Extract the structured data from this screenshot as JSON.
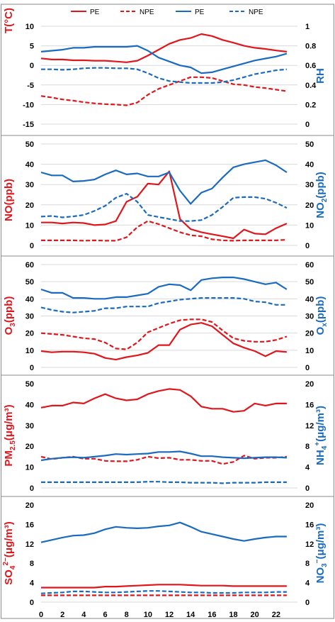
{
  "colors": {
    "pe": "#e0161c",
    "npe": "#e0161c",
    "blue": "#1a6bbf",
    "blue_npe": "#1a6bbf"
  },
  "legend": [
    {
      "label": "PE",
      "color": "#e0161c",
      "dashed": false
    },
    {
      "label": "NPE",
      "color": "#e0161c",
      "dashed": true
    },
    {
      "label": "PE",
      "color": "#1a6bbf",
      "dashed": false
    },
    {
      "label": "NPE",
      "color": "#1a6bbf",
      "dashed": true
    }
  ],
  "chart_data": [
    {
      "type": "line",
      "x": [
        0,
        1,
        2,
        3,
        4,
        5,
        6,
        7,
        8,
        9,
        10,
        11,
        12,
        13,
        14,
        15,
        16,
        17,
        18,
        19,
        20,
        21,
        22,
        23
      ],
      "xticks": [
        0,
        2,
        4,
        6,
        8,
        10,
        12,
        14,
        16,
        18,
        20,
        22
      ],
      "ylabel_left": "T(°C)",
      "ylabel_right": "RH",
      "ylim_left": [
        -15,
        10
      ],
      "yticks_left": [
        -15,
        -10,
        -5,
        0,
        5,
        10
      ],
      "ylim_right": [
        0,
        1
      ],
      "yticks_right": [
        "0",
        "0.2",
        "0.4",
        "0.6",
        "0.8",
        "1"
      ],
      "grid": true,
      "series": [
        {
          "name": "PE",
          "axis": "left",
          "color": "#e0161c",
          "dashed": false,
          "values": [
            1.8,
            1.5,
            1.5,
            1.3,
            1.3,
            1.2,
            1.2,
            1.0,
            0.8,
            1.2,
            2.5,
            4.0,
            5.5,
            6.5,
            7.0,
            8.0,
            7.5,
            6.5,
            5.8,
            5.0,
            4.5,
            4.2,
            3.8,
            3.5
          ]
        },
        {
          "name": "NPE",
          "axis": "left",
          "color": "#e0161c",
          "dashed": true,
          "values": [
            -7.8,
            -8.2,
            -8.7,
            -9.0,
            -9.4,
            -9.7,
            -9.9,
            -10.0,
            -10.2,
            -9.5,
            -7.5,
            -6.0,
            -5.0,
            -4.0,
            -3.0,
            -3.0,
            -3.2,
            -4.0,
            -4.8,
            -5.0,
            -5.5,
            -5.8,
            -6.2,
            -6.6
          ]
        },
        {
          "name": "PE",
          "axis": "right",
          "color": "#1a6bbf",
          "dashed": false,
          "values": [
            0.74,
            0.75,
            0.76,
            0.78,
            0.78,
            0.79,
            0.79,
            0.79,
            0.79,
            0.8,
            0.75,
            0.68,
            0.64,
            0.6,
            0.58,
            0.52,
            0.53,
            0.56,
            0.59,
            0.62,
            0.65,
            0.67,
            0.69,
            0.72
          ]
        },
        {
          "name": "NPE",
          "axis": "right",
          "color": "#1a6bbf",
          "dashed": true,
          "values": [
            0.56,
            0.56,
            0.555,
            0.56,
            0.57,
            0.575,
            0.575,
            0.57,
            0.57,
            0.56,
            0.52,
            0.47,
            0.44,
            0.43,
            0.42,
            0.42,
            0.42,
            0.43,
            0.45,
            0.48,
            0.51,
            0.53,
            0.55,
            0.56
          ]
        }
      ]
    },
    {
      "type": "line",
      "x": [
        0,
        1,
        2,
        3,
        4,
        5,
        6,
        7,
        8,
        9,
        10,
        11,
        12,
        13,
        14,
        15,
        16,
        17,
        18,
        19,
        20,
        21,
        22,
        23
      ],
      "xticks": [
        0,
        2,
        4,
        6,
        8,
        10,
        12,
        14,
        16,
        18,
        20,
        22
      ],
      "ylabel_left": "NO(ppb)",
      "ylabel_right": "NO2(ppb)",
      "ylim_left": [
        0,
        50
      ],
      "yticks_left": [
        0,
        10,
        20,
        30,
        40,
        50
      ],
      "ylim_right": [
        0,
        50
      ],
      "yticks_right": [
        0,
        10,
        20,
        30,
        40,
        50
      ],
      "grid": true,
      "series": [
        {
          "name": "PE",
          "axis": "left",
          "color": "#e0161c",
          "dashed": false,
          "values": [
            11.3,
            11.3,
            10.8,
            11.3,
            11.0,
            10.0,
            10.3,
            12.0,
            21.5,
            24.0,
            30.5,
            30.0,
            36.5,
            13.0,
            8.0,
            6.5,
            5.5,
            4.5,
            3.5,
            7.8,
            5.8,
            5.5,
            8.5,
            10.8
          ]
        },
        {
          "name": "NPE",
          "axis": "left",
          "color": "#e0161c",
          "dashed": true,
          "values": [
            2.5,
            2.5,
            2.5,
            2.5,
            2.3,
            2.5,
            2.3,
            2.3,
            4.0,
            9.0,
            12.0,
            10.5,
            8.5,
            6.5,
            5.0,
            4.5,
            3.0,
            2.5,
            2.3,
            2.5,
            2.5,
            2.5,
            2.5,
            2.8
          ]
        },
        {
          "name": "PE",
          "axis": "right",
          "color": "#1a6bbf",
          "dashed": false,
          "values": [
            36.0,
            34.5,
            34.5,
            31.5,
            31.8,
            32.5,
            35.0,
            37.0,
            35.0,
            35.5,
            34.0,
            34.0,
            36.0,
            27.0,
            20.5,
            26.0,
            28.0,
            33.5,
            38.5,
            40.0,
            41.0,
            42.0,
            39.5,
            36.0
          ]
        },
        {
          "name": "NPE",
          "axis": "right",
          "color": "#1a6bbf",
          "dashed": true,
          "values": [
            14.2,
            14.5,
            13.8,
            14.3,
            15.0,
            17.0,
            19.5,
            23.5,
            25.5,
            21.5,
            15.0,
            14.0,
            13.0,
            12.0,
            12.0,
            12.5,
            15.0,
            19.0,
            23.5,
            23.8,
            23.8,
            23.0,
            21.0,
            18.5
          ]
        }
      ]
    },
    {
      "type": "line",
      "x": [
        0,
        1,
        2,
        3,
        4,
        5,
        6,
        7,
        8,
        9,
        10,
        11,
        12,
        13,
        14,
        15,
        16,
        17,
        18,
        19,
        20,
        21,
        22,
        23
      ],
      "xticks": [
        0,
        2,
        4,
        6,
        8,
        10,
        12,
        14,
        16,
        18,
        20,
        22
      ],
      "ylabel_left": "O3(ppb)",
      "ylabel_right": "Ox(ppb)",
      "ylim_left": [
        0,
        60
      ],
      "yticks_left": [
        0,
        10,
        20,
        30,
        40,
        50,
        60
      ],
      "ylim_right": [
        0,
        60
      ],
      "yticks_right": [
        0,
        10,
        20,
        30,
        40,
        50,
        60
      ],
      "grid": true,
      "series": [
        {
          "name": "PE",
          "axis": "left",
          "color": "#e0161c",
          "dashed": false,
          "values": [
            9.5,
            8.8,
            9.2,
            9.2,
            8.8,
            8.0,
            5.5,
            4.5,
            6.0,
            7.0,
            8.5,
            13.0,
            13.0,
            22.0,
            25.0,
            26.0,
            24.0,
            19.0,
            14.0,
            11.5,
            9.5,
            6.5,
            9.5,
            9.0
          ]
        },
        {
          "name": "NPE",
          "axis": "left",
          "color": "#e0161c",
          "dashed": true,
          "values": [
            20.0,
            19.5,
            19.0,
            18.0,
            17.0,
            16.5,
            14.5,
            11.0,
            10.5,
            14.5,
            20.5,
            23.0,
            25.5,
            27.5,
            28.0,
            28.0,
            26.5,
            21.5,
            17.0,
            15.5,
            15.0,
            15.0,
            16.0,
            18.0
          ]
        },
        {
          "name": "PE",
          "axis": "right",
          "color": "#1a6bbf",
          "dashed": false,
          "values": [
            45.5,
            43.5,
            43.5,
            40.5,
            40.5,
            40.0,
            40.0,
            41.0,
            41.0,
            42.0,
            43.0,
            47.0,
            48.5,
            48.0,
            45.0,
            51.0,
            52.0,
            52.5,
            52.5,
            51.5,
            50.0,
            48.5,
            49.5,
            45.5
          ]
        },
        {
          "name": "NPE",
          "axis": "right",
          "color": "#1a6bbf",
          "dashed": true,
          "values": [
            35.0,
            33.5,
            32.5,
            32.0,
            32.5,
            33.0,
            34.5,
            34.5,
            35.5,
            35.5,
            35.5,
            37.5,
            38.5,
            39.5,
            40.0,
            40.5,
            40.5,
            40.5,
            40.5,
            40.0,
            38.5,
            38.0,
            36.5,
            36.5
          ]
        }
      ]
    },
    {
      "type": "line",
      "x": [
        0,
        1,
        2,
        3,
        4,
        5,
        6,
        7,
        8,
        9,
        10,
        11,
        12,
        13,
        14,
        15,
        16,
        17,
        18,
        19,
        20,
        21,
        22,
        23
      ],
      "xticks": [
        0,
        2,
        4,
        6,
        8,
        10,
        12,
        14,
        16,
        18,
        20,
        22
      ],
      "ylabel_left": "PM2.5(μg/m3)",
      "ylabel_right": "NH4+(μg/m3)",
      "ylim_left": [
        0,
        50
      ],
      "yticks_left": [
        0,
        10,
        20,
        30,
        40,
        50
      ],
      "ylim_right": [
        0,
        20
      ],
      "yticks_right": [
        0,
        4,
        8,
        12,
        16,
        20
      ],
      "grid": false,
      "series": [
        {
          "name": "PE",
          "axis": "left",
          "color": "#e0161c",
          "dashed": false,
          "values": [
            38.5,
            39.5,
            39.5,
            41.0,
            40.5,
            43.0,
            45.0,
            43.0,
            42.0,
            42.5,
            45.0,
            46.5,
            47.5,
            47.0,
            44.0,
            39.0,
            38.0,
            38.0,
            36.5,
            37.0,
            40.5,
            39.5,
            40.5,
            40.5
          ]
        },
        {
          "name": "NPE",
          "axis": "left",
          "color": "#e0161c",
          "dashed": true,
          "values": [
            15.0,
            13.8,
            14.5,
            15.0,
            14.0,
            14.0,
            13.0,
            12.8,
            12.8,
            13.5,
            15.0,
            14.3,
            14.5,
            13.5,
            13.5,
            13.0,
            13.0,
            11.5,
            12.5,
            15.5,
            14.0,
            14.5,
            14.5,
            15.0
          ]
        },
        {
          "name": "PE",
          "axis": "right",
          "color": "#1a6bbf",
          "dashed": false,
          "values": [
            5.3,
            5.6,
            5.8,
            5.9,
            5.8,
            6.0,
            6.2,
            6.5,
            6.4,
            6.5,
            6.6,
            6.9,
            6.9,
            7.0,
            6.6,
            6.1,
            6.1,
            5.9,
            5.8,
            5.7,
            5.8,
            5.9,
            5.9,
            5.8
          ]
        },
        {
          "name": "NPE",
          "axis": "right",
          "color": "#1a6bbf",
          "dashed": true,
          "values": [
            1.1,
            1.1,
            1.1,
            1.1,
            1.1,
            1.1,
            1.1,
            1.1,
            1.1,
            1.1,
            1.2,
            1.2,
            1.1,
            1.1,
            1.0,
            1.0,
            1.0,
            0.9,
            1.0,
            1.0,
            1.0,
            1.1,
            1.1,
            1.1
          ]
        }
      ]
    },
    {
      "type": "line",
      "x": [
        0,
        1,
        2,
        3,
        4,
        5,
        6,
        7,
        8,
        9,
        10,
        11,
        12,
        13,
        14,
        15,
        16,
        17,
        18,
        19,
        20,
        21,
        22,
        23
      ],
      "xticks": [
        0,
        2,
        4,
        6,
        8,
        10,
        12,
        14,
        16,
        18,
        20,
        22
      ],
      "xticklabels": [
        "0",
        "2",
        "4",
        "6",
        "8",
        "10",
        "12",
        "14",
        "16",
        "18",
        "20",
        "22"
      ],
      "ylabel_left": "SO42-(μg/m3)",
      "ylabel_right": "NO3-(μg/m3)",
      "ylim_left": [
        0,
        20
      ],
      "yticks_left": [
        0,
        4,
        8,
        12,
        16,
        20
      ],
      "ylim_right": [
        0,
        20
      ],
      "yticks_right": [
        0,
        4,
        8,
        12,
        16,
        20
      ],
      "grid": false,
      "series": [
        {
          "name": "PE",
          "axis": "left",
          "color": "#e0161c",
          "dashed": false,
          "values": [
            3.0,
            3.0,
            3.0,
            3.0,
            3.0,
            3.0,
            3.2,
            3.2,
            3.3,
            3.4,
            3.5,
            3.6,
            3.6,
            3.6,
            3.5,
            3.4,
            3.4,
            3.4,
            3.3,
            3.3,
            3.3,
            3.3,
            3.3,
            3.3
          ]
        },
        {
          "name": "NPE",
          "axis": "left",
          "color": "#e0161c",
          "dashed": true,
          "values": [
            1.4,
            1.4,
            1.4,
            1.4,
            1.4,
            1.4,
            1.4,
            1.4,
            1.4,
            1.4,
            1.4,
            1.4,
            1.4,
            1.4,
            1.4,
            1.4,
            1.4,
            1.4,
            1.4,
            1.4,
            1.4,
            1.4,
            1.4,
            1.4
          ]
        },
        {
          "name": "PE",
          "axis": "right",
          "color": "#1a6bbf",
          "dashed": false,
          "values": [
            12.3,
            12.8,
            13.3,
            13.7,
            13.8,
            14.2,
            15.0,
            15.5,
            15.3,
            15.2,
            15.3,
            15.6,
            15.8,
            16.4,
            15.5,
            14.5,
            14.0,
            13.5,
            13.0,
            12.6,
            13.0,
            13.3,
            13.5,
            13.5
          ]
        },
        {
          "name": "NPE",
          "axis": "right",
          "color": "#1a6bbf",
          "dashed": true,
          "values": [
            1.8,
            1.9,
            2.0,
            2.2,
            2.2,
            2.1,
            2.0,
            2.0,
            2.1,
            2.2,
            2.3,
            2.3,
            2.2,
            2.1,
            2.0,
            2.0,
            1.9,
            1.9,
            1.9,
            2.0,
            2.0,
            2.0,
            2.1,
            2.1
          ]
        }
      ]
    }
  ]
}
